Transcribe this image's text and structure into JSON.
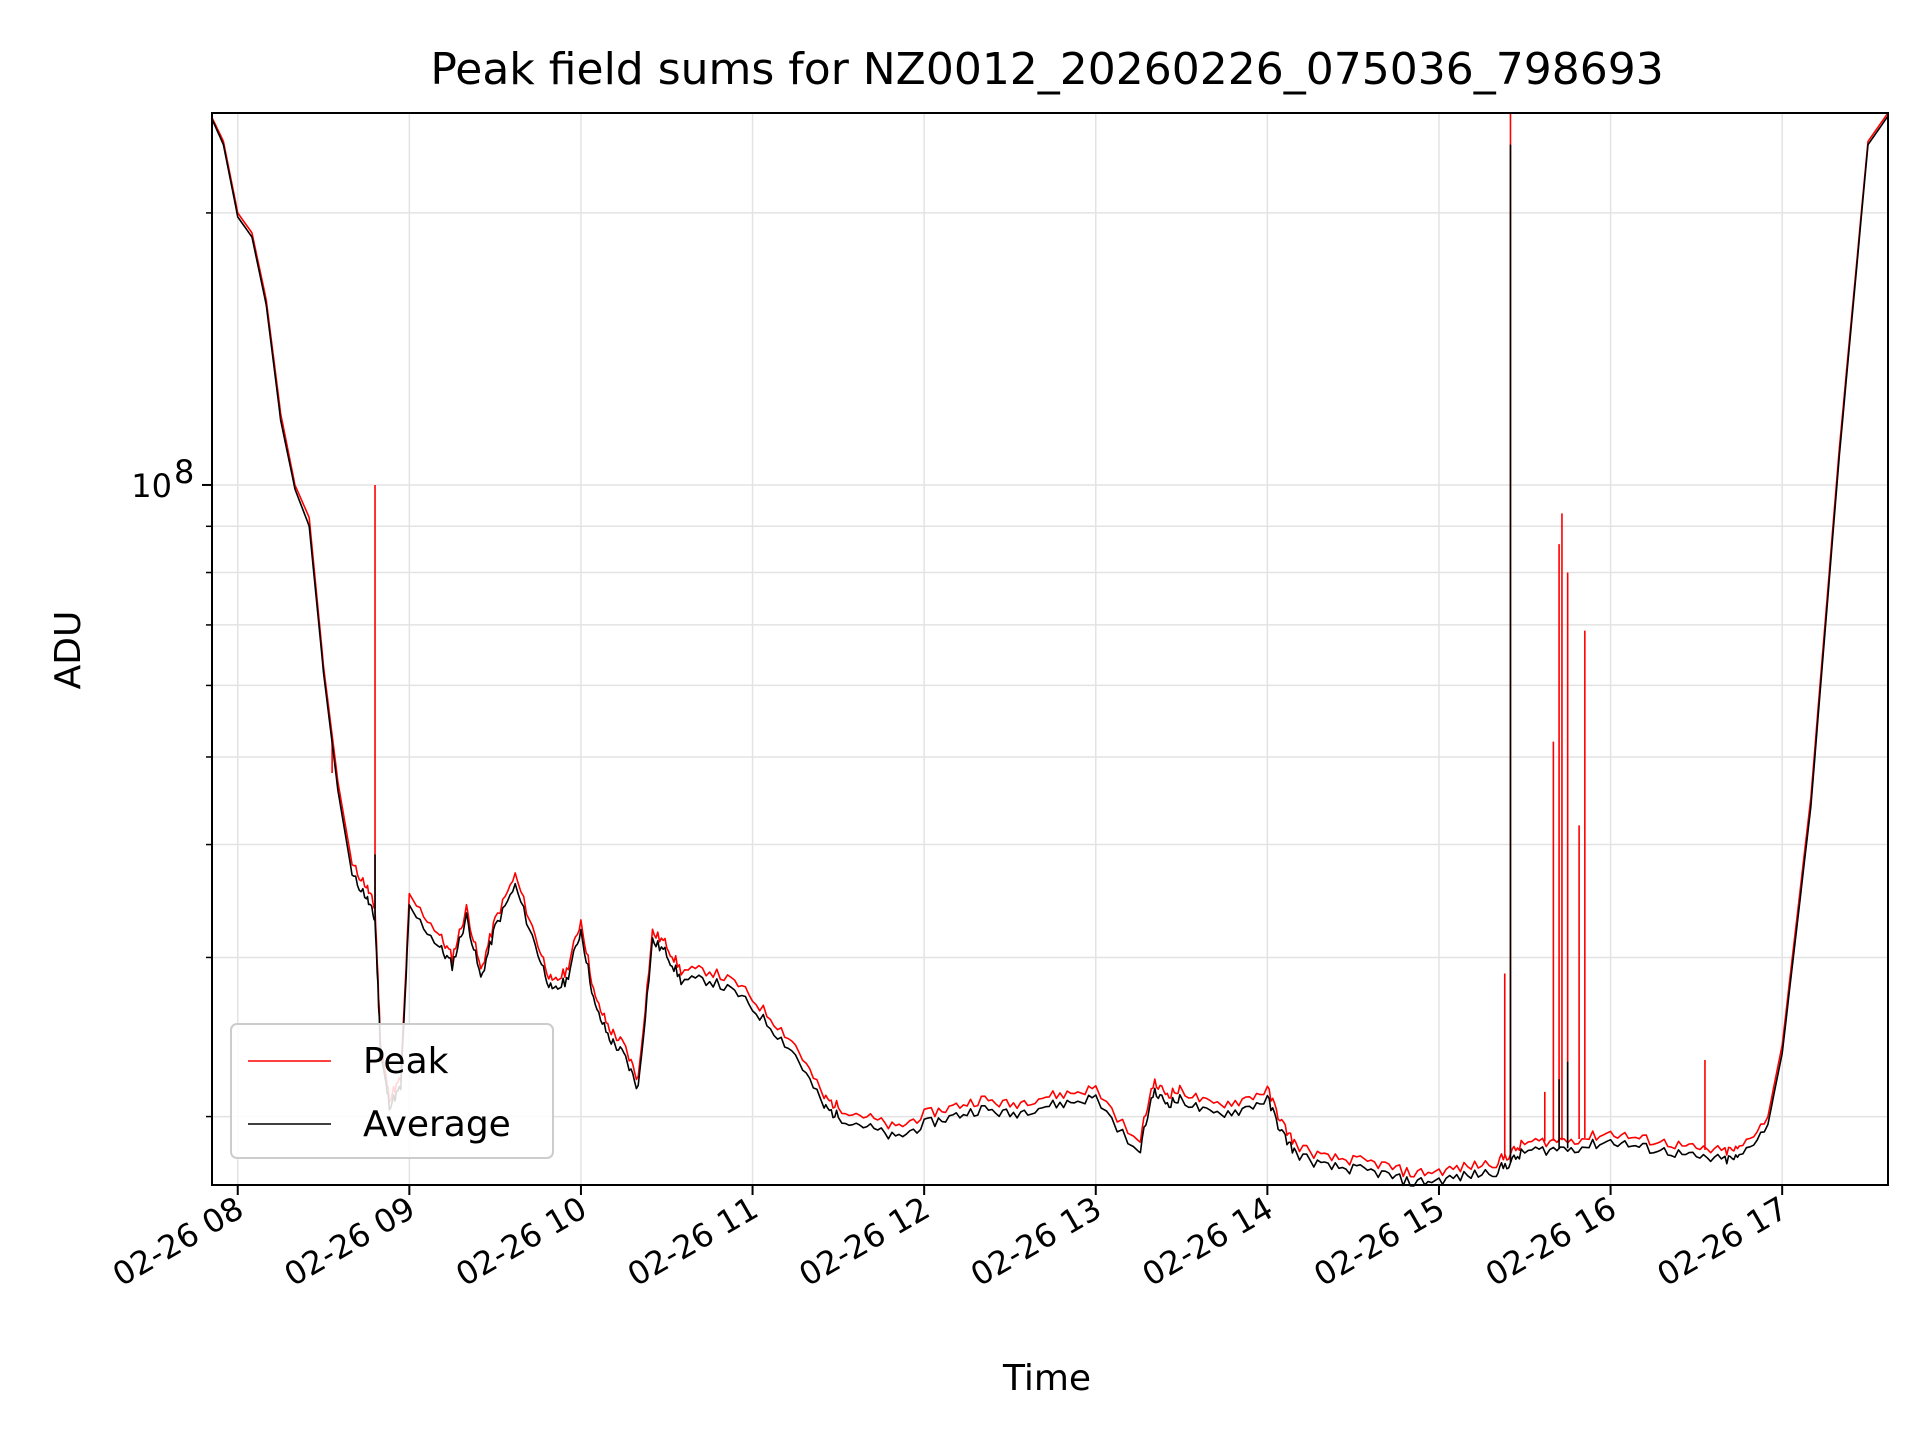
{
  "chart_data": {
    "type": "line",
    "title": "Peak field sums for NZ0012_20260226_075036_798693",
    "xlabel": "Time",
    "ylabel": "ADU",
    "yscale": "log",
    "xlim": [
      "2026-02-26 07:51",
      "2026-02-26 17:37"
    ],
    "ylim": [
      16800000,
      258000000
    ],
    "grid": true,
    "legend_position": "lower-left",
    "x_ticks": [
      "02-26 08",
      "02-26 09",
      "02-26 10",
      "02-26 11",
      "02-26 12",
      "02-26 13",
      "02-26 14",
      "02-26 15",
      "02-26 16",
      "02-26 17"
    ],
    "y_ticks": [
      {
        "base": "10",
        "exp": "8",
        "value": 100000000
      }
    ],
    "x": [
      "07:51",
      "07:55",
      "08:00",
      "08:05",
      "08:10",
      "08:15",
      "08:20",
      "08:25",
      "08:30",
      "08:35",
      "08:40",
      "08:45",
      "08:48",
      "08:50",
      "08:53",
      "08:57",
      "09:00",
      "09:10",
      "09:15",
      "09:20",
      "09:25",
      "09:30",
      "09:37",
      "09:45",
      "09:50",
      "09:55",
      "10:00",
      "10:05",
      "10:10",
      "10:15",
      "10:20",
      "10:25",
      "10:30",
      "10:35",
      "10:45",
      "10:55",
      "11:05",
      "11:15",
      "11:25",
      "11:30",
      "11:40",
      "11:50",
      "12:00",
      "12:10",
      "12:20",
      "12:30",
      "12:40",
      "12:50",
      "13:00",
      "13:15",
      "13:20",
      "13:25",
      "13:30",
      "13:40",
      "13:50",
      "14:00",
      "14:05",
      "14:10",
      "14:20",
      "14:30",
      "14:40",
      "14:50",
      "15:00",
      "15:10",
      "15:20",
      "15:25",
      "15:30",
      "15:40",
      "15:50",
      "16:00",
      "16:10",
      "16:20",
      "16:30",
      "16:40",
      "16:45",
      "16:55",
      "17:00",
      "17:10",
      "17:20",
      "17:30",
      "17:37"
    ],
    "series": [
      {
        "name": "Peak",
        "color": "#ff0000",
        "values": [
          255000000,
          240000000,
          200000000,
          190000000,
          160000000,
          120000000,
          100000000,
          92000000,
          63000000,
          47000000,
          38000000,
          36000000,
          34000000,
          24000000,
          21000000,
          22000000,
          35000000,
          32000000,
          30000000,
          34000000,
          29000000,
          33000000,
          37000000,
          31000000,
          28000000,
          29000000,
          33000000,
          27000000,
          25000000,
          24000000,
          22000000,
          32000000,
          31000000,
          29000000,
          29000000,
          28000000,
          26000000,
          24000000,
          21000000,
          20500000,
          20000000,
          19400000,
          20100000,
          20500000,
          20900000,
          20600000,
          21000000,
          21200000,
          21500000,
          18600000,
          21800000,
          21200000,
          21400000,
          20600000,
          20800000,
          21400000,
          19700000,
          18600000,
          18000000,
          17900000,
          17700000,
          17300000,
          17400000,
          17600000,
          17800000,
          18200000,
          18700000,
          18800000,
          18900000,
          19200000,
          18900000,
          18700000,
          18400000,
          18300000,
          18400000,
          20000000,
          24000000,
          45000000,
          110000000,
          240000000,
          258000000
        ],
        "spikes": [
          {
            "x": "08:48",
            "value": 100000000
          },
          {
            "x": "08:33",
            "value": 48000000
          },
          {
            "x": "15:23",
            "value": 28800000
          },
          {
            "x": "15:25",
            "value": 258000000
          },
          {
            "x": "15:37",
            "value": 21300000
          },
          {
            "x": "15:40",
            "value": 52000000
          },
          {
            "x": "15:42",
            "value": 86000000
          },
          {
            "x": "15:43",
            "value": 93000000
          },
          {
            "x": "15:45",
            "value": 80000000
          },
          {
            "x": "15:49",
            "value": 42000000
          },
          {
            "x": "15:51",
            "value": 69000000
          },
          {
            "x": "16:33",
            "value": 23100000
          }
        ]
      },
      {
        "name": "Average",
        "color": "#000000",
        "values": [
          254000000,
          238000000,
          198000000,
          188000000,
          158000000,
          118000000,
          99000000,
          90000000,
          62000000,
          46000000,
          37000000,
          35000000,
          33000000,
          23500000,
          20600000,
          21500000,
          34000000,
          31000000,
          29400000,
          33300000,
          28400000,
          32400000,
          36000000,
          30300000,
          27400000,
          28300000,
          32200000,
          26400000,
          24400000,
          23400000,
          21500000,
          31300000,
          30300000,
          28300000,
          28300000,
          27300000,
          25400000,
          23400000,
          20500000,
          20000000,
          19500000,
          18900000,
          19600000,
          20000000,
          20400000,
          20100000,
          20500000,
          20700000,
          21000000,
          18100000,
          21300000,
          20700000,
          20900000,
          20100000,
          20300000,
          20900000,
          19200000,
          18200000,
          17600000,
          17500000,
          17300000,
          16900000,
          17000000,
          17200000,
          17400000,
          17800000,
          18300000,
          18400000,
          18500000,
          18800000,
          18500000,
          18300000,
          18000000,
          17900000,
          18000000,
          19600000,
          23500000,
          44000000,
          108000000,
          238000000,
          256000000
        ],
        "spikes": [
          {
            "x": "08:48",
            "value": 39000000
          },
          {
            "x": "15:25",
            "value": 238000000
          },
          {
            "x": "15:42",
            "value": 22000000
          },
          {
            "x": "15:45",
            "value": 23000000
          }
        ]
      }
    ]
  }
}
